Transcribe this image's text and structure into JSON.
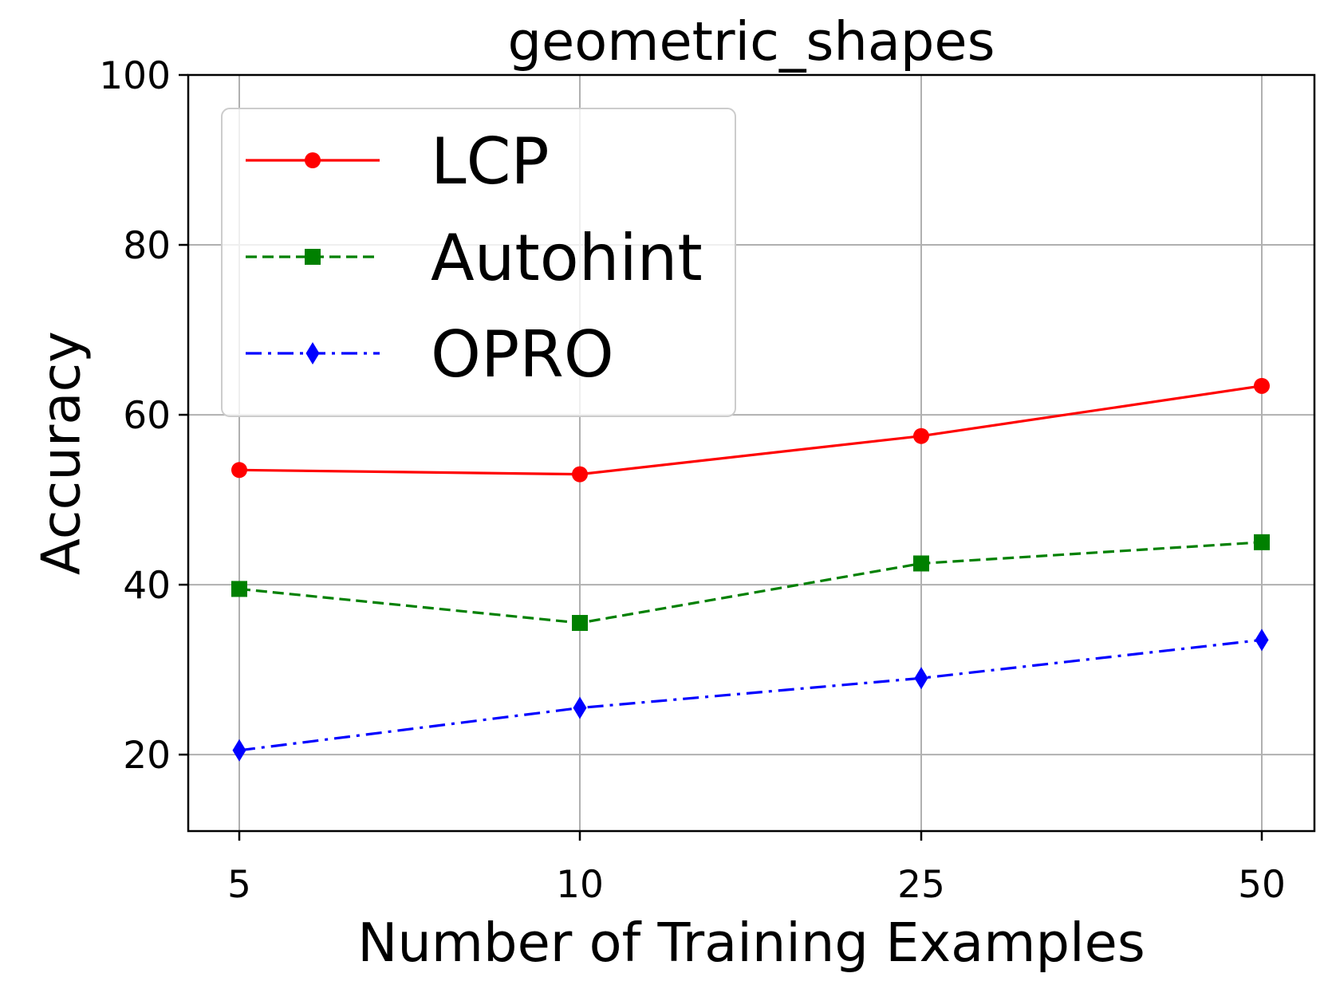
{
  "chart_data": {
    "type": "line",
    "title": "geometric_shapes",
    "xlabel": "Number of Training Examples",
    "ylabel": "Accuracy",
    "categories": [
      "5",
      "10",
      "25",
      "50"
    ],
    "ylim": [
      11,
      100
    ],
    "yticks": [
      20,
      40,
      60,
      80,
      100
    ],
    "grid": true,
    "legend_position": "top-left",
    "series": [
      {
        "name": "LCP",
        "values": [
          53.5,
          53.0,
          57.5,
          63.4
        ],
        "color": "#ff0000",
        "linestyle": "solid",
        "marker": "circle"
      },
      {
        "name": "Autohint",
        "values": [
          39.5,
          35.5,
          42.5,
          45.0
        ],
        "color": "#008000",
        "linestyle": "dashed",
        "marker": "square"
      },
      {
        "name": "OPRO",
        "values": [
          20.5,
          25.5,
          29.0,
          33.5
        ],
        "color": "#0000ff",
        "linestyle": "dashdot",
        "marker": "diamond"
      }
    ]
  }
}
